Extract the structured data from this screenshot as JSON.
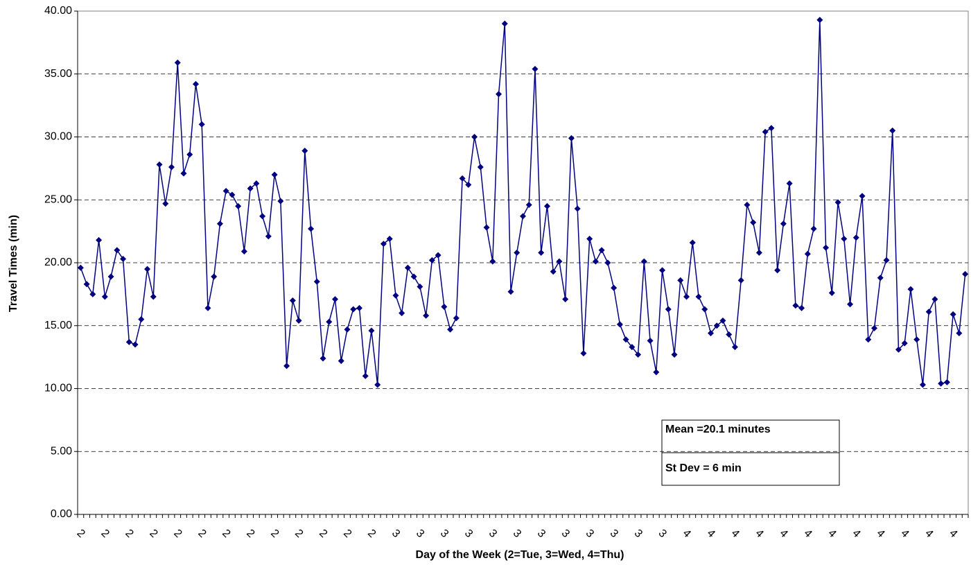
{
  "chart_data": {
    "type": "line",
    "x_label": "Day of the Week (2=Tue, 3=Wed, 4=Thu)",
    "y_label": "Travel Times (min)",
    "annotations": [
      "Mean  =20.1 minutes",
      "St Dev = 6 min"
    ],
    "categories": [
      "2",
      null,
      null,
      null,
      "2",
      null,
      null,
      null,
      "2",
      null,
      null,
      null,
      "2",
      null,
      null,
      null,
      "2",
      null,
      null,
      null,
      "2",
      null,
      null,
      null,
      "2",
      null,
      null,
      null,
      "2",
      null,
      null,
      null,
      "2",
      null,
      null,
      null,
      "2",
      null,
      null,
      null,
      "2",
      null,
      null,
      null,
      "2",
      null,
      null,
      null,
      "2",
      null,
      null,
      null,
      "3",
      null,
      null,
      null,
      "3",
      null,
      null,
      null,
      "3",
      null,
      null,
      null,
      "3",
      null,
      null,
      null,
      "3",
      null,
      null,
      null,
      "3",
      null,
      null,
      null,
      "3",
      null,
      null,
      null,
      "3",
      null,
      null,
      null,
      "3",
      null,
      null,
      null,
      "3",
      null,
      null,
      null,
      "3",
      null,
      null,
      null,
      "3",
      null,
      null,
      null,
      "4",
      null,
      null,
      null,
      "4",
      null,
      null,
      null,
      "4",
      null,
      null,
      null,
      "4",
      null,
      null,
      null,
      "4",
      null,
      null,
      null,
      "4",
      null,
      null,
      null,
      "4",
      null,
      null,
      null,
      "4",
      null,
      null,
      null,
      "4",
      null,
      null,
      null,
      "4",
      null,
      null,
      null,
      "4",
      null,
      null,
      null,
      "4",
      null,
      null
    ],
    "series": [
      {
        "color": "#000080",
        "values": [
          19.6,
          18.3,
          17.5,
          21.8,
          17.3,
          18.9,
          21.0,
          20.3,
          13.7,
          13.5,
          15.5,
          19.5,
          17.3,
          27.8,
          24.7,
          27.6,
          35.9,
          27.1,
          28.6,
          34.2,
          31.0,
          16.4,
          18.9,
          23.1,
          25.7,
          25.4,
          24.5,
          20.9,
          25.9,
          26.3,
          23.7,
          22.1,
          27.0,
          24.9,
          11.8,
          17.0,
          15.4,
          28.9,
          22.7,
          18.5,
          12.4,
          15.3,
          17.1,
          12.2,
          14.7,
          16.3,
          16.4,
          11.0,
          14.6,
          10.3,
          21.5,
          21.9,
          17.4,
          16.0,
          19.6,
          18.9,
          18.1,
          15.8,
          20.2,
          20.6,
          16.5,
          14.7,
          15.6,
          26.7,
          26.2,
          30.0,
          27.6,
          22.8,
          20.1,
          33.4,
          39.0,
          17.7,
          20.8,
          23.7,
          24.6,
          35.4,
          20.8,
          24.5,
          19.3,
          20.1,
          17.1,
          29.9,
          24.3,
          12.8,
          21.9,
          20.1,
          21.0,
          20.0,
          18.0,
          15.1,
          13.9,
          13.3,
          12.7,
          20.1,
          13.8,
          11.3,
          19.4,
          16.3,
          12.7,
          18.6,
          17.3,
          21.6,
          17.3,
          16.3,
          14.4,
          15.0,
          15.4,
          14.3,
          13.3,
          18.6,
          24.6,
          23.2,
          20.8,
          30.4,
          30.7,
          19.4,
          23.1,
          26.3,
          16.6,
          16.4,
          20.7,
          22.7,
          39.3,
          21.2,
          17.6,
          24.8,
          21.9,
          16.7,
          22.0,
          25.3,
          13.9,
          14.8,
          18.8,
          20.2,
          30.5,
          13.1,
          13.6,
          17.9,
          13.9,
          10.3,
          16.1,
          17.1,
          10.4,
          10.5,
          15.9,
          14.4,
          19.1
        ]
      }
    ],
    "ylim": [
      0,
      40
    ],
    "yticks": [
      {
        "value": 0,
        "label": "0.00"
      },
      {
        "value": 5,
        "label": "5.00"
      },
      {
        "value": 10,
        "label": "10.00"
      },
      {
        "value": 15,
        "label": "15.00"
      },
      {
        "value": 20,
        "label": "20.00"
      },
      {
        "value": 25,
        "label": "25.00"
      },
      {
        "value": 30,
        "label": "30.00"
      },
      {
        "value": 35,
        "label": "35.00"
      },
      {
        "value": 40,
        "label": "40.00"
      }
    ],
    "grid": true
  }
}
